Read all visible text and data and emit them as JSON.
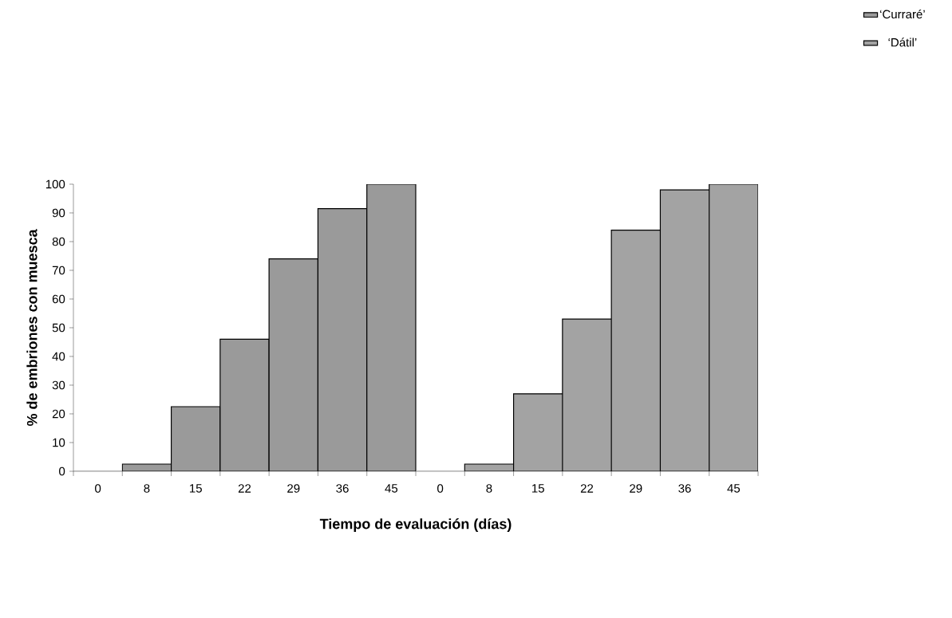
{
  "chart_data": {
    "type": "bar",
    "xlabel": "Tiempo de evaluación (días)",
    "ylabel": "% de embriones con muesca",
    "categories": [
      "0",
      "8",
      "15",
      "22",
      "29",
      "36",
      "45",
      "0",
      "8",
      "15",
      "22",
      "29",
      "36",
      "45"
    ],
    "series": [
      {
        "name": "‘Curraré’",
        "color": "#9a9a9a",
        "values": [
          0,
          2.5,
          22.5,
          46,
          74,
          91.5,
          100,
          null,
          null,
          null,
          null,
          null,
          null,
          null
        ]
      },
      {
        "name": "‘Dátil’",
        "color": "#a3a3a3",
        "values": [
          null,
          null,
          null,
          null,
          null,
          null,
          null,
          0,
          2.5,
          27,
          53,
          84,
          98,
          100
        ]
      }
    ],
    "ylim": [
      0,
      100
    ],
    "yticks": [
      0,
      10,
      20,
      30,
      40,
      50,
      60,
      70,
      80,
      90,
      100
    ],
    "legend": "top right"
  }
}
